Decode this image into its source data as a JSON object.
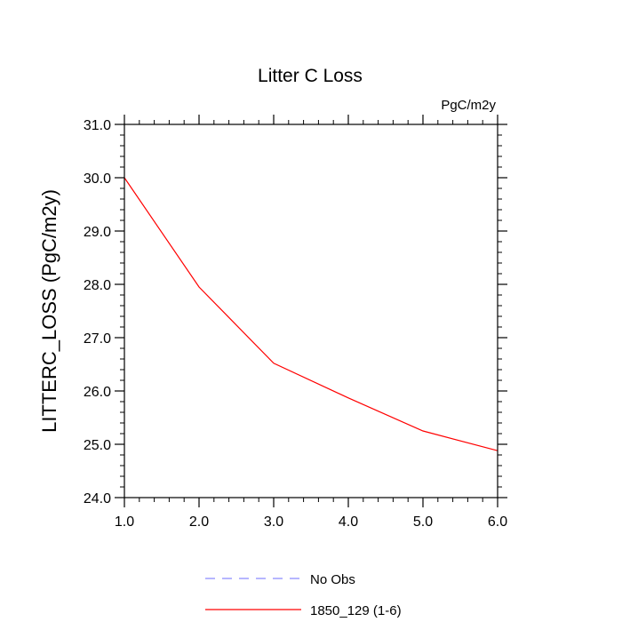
{
  "chart_data": {
    "type": "line",
    "title": "Litter C Loss",
    "units": "PgC/m2y",
    "ylabel": "LITTERC_LOSS  (PgC/m2y)",
    "xlabel": "",
    "xlim": [
      1.0,
      6.0
    ],
    "ylim": [
      24.0,
      31.0
    ],
    "xticks": [
      "1.0",
      "2.0",
      "3.0",
      "4.0",
      "5.0",
      "6.0"
    ],
    "yticks": [
      "24.0",
      "25.0",
      "26.0",
      "27.0",
      "28.0",
      "29.0",
      "30.0",
      "31.0"
    ],
    "grid": false,
    "legend_position": "bottom",
    "series": [
      {
        "name": "1850_129 (1-6)",
        "color": "#ff0000",
        "style": "solid",
        "x": [
          1,
          2,
          3,
          4,
          5,
          6
        ],
        "y": [
          30.0,
          27.95,
          26.52,
          25.87,
          25.25,
          24.88
        ]
      }
    ],
    "legend": [
      {
        "label": "No Obs",
        "color": "#8a8aff",
        "style": "dashed"
      },
      {
        "label": "1850_129 (1-6)",
        "color": "#ff0000",
        "style": "solid"
      }
    ]
  }
}
